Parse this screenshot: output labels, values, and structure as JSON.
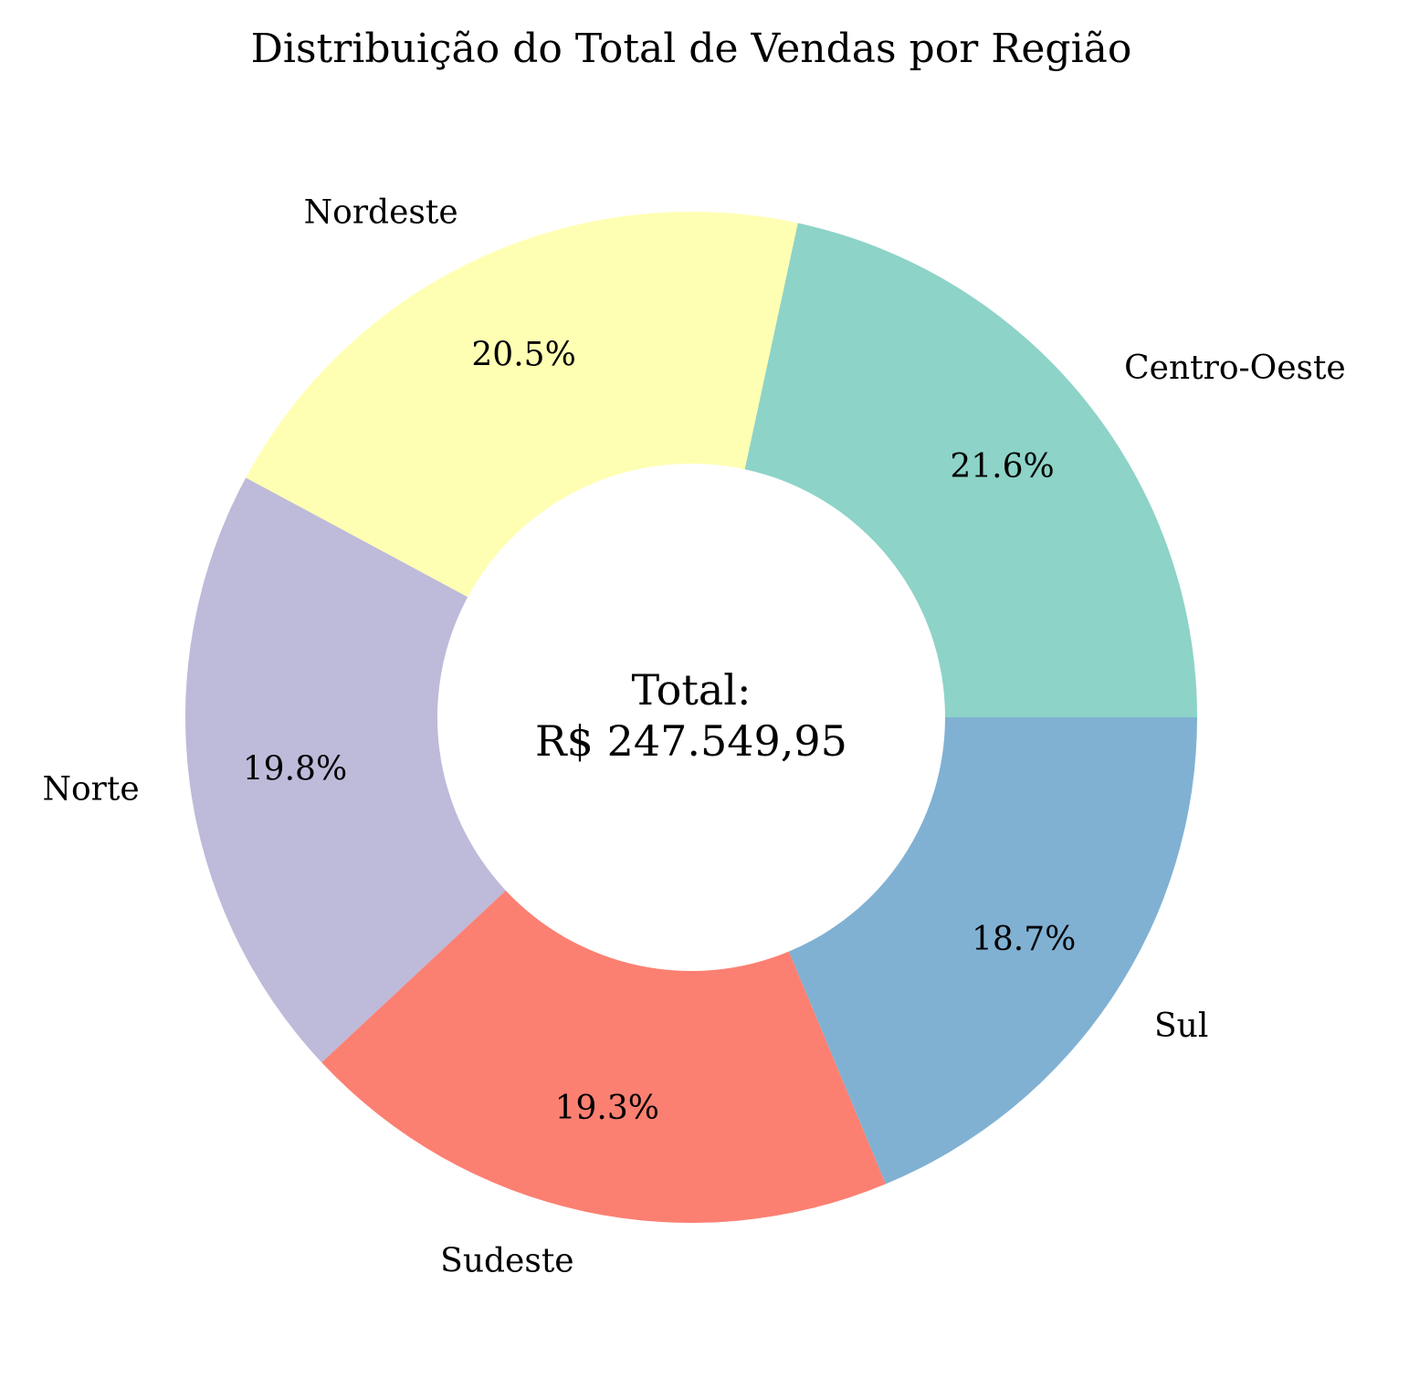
{
  "chart_data": {
    "type": "pie",
    "style": "donut",
    "title": "Distribuição do Total de Vendas por Região",
    "start_angle_deg": 0,
    "direction": "counterclockwise",
    "categories": [
      "Centro-Oeste",
      "Nordeste",
      "Norte",
      "Sudeste",
      "Sul"
    ],
    "values": [
      21.6,
      20.5,
      19.8,
      19.3,
      18.7
    ],
    "value_labels": [
      "21.6%",
      "20.5%",
      "19.8%",
      "19.3%",
      "18.7%"
    ],
    "colors": [
      "#8dd3c7",
      "#ffffb3",
      "#bebada",
      "#fb8072",
      "#80b1d3"
    ],
    "center_label": [
      "Total:",
      "R$ 247.549,95"
    ]
  }
}
